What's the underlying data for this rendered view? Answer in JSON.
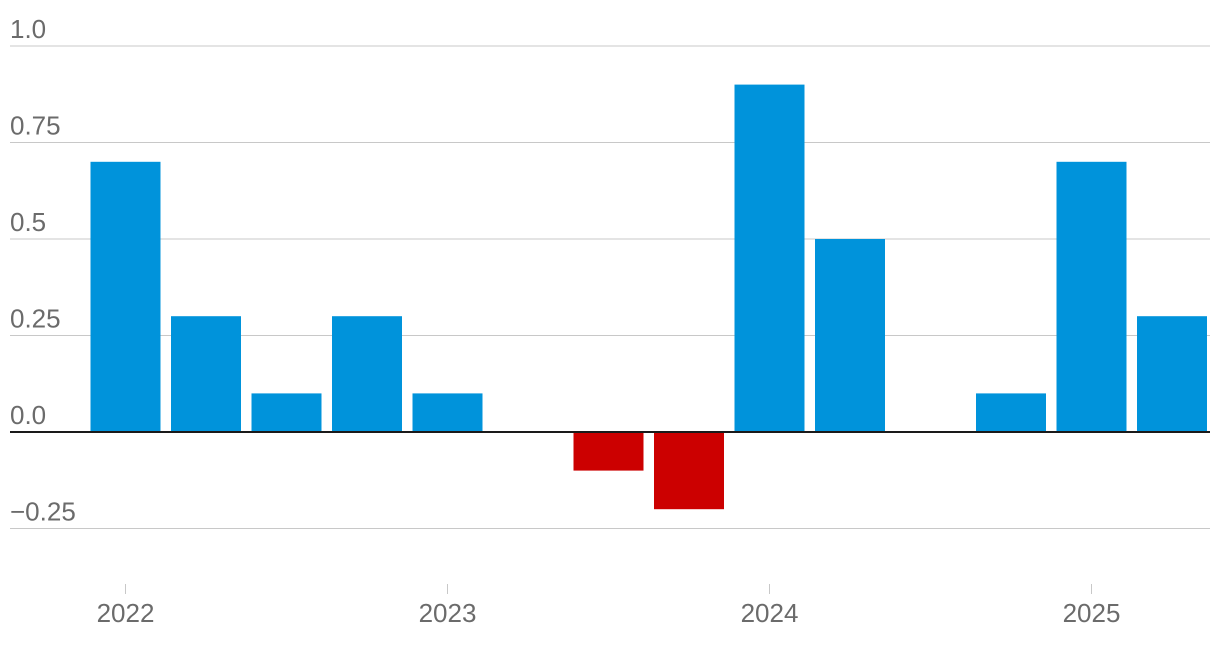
{
  "chart_data": {
    "type": "bar",
    "title": "",
    "xlabel": "",
    "ylabel": "",
    "ylim": [
      -0.35,
      1.0
    ],
    "y_ticks": [
      1.0,
      0.75,
      0.5,
      0.25,
      0.0,
      -0.25
    ],
    "y_tick_labels": [
      "1.0",
      "0.75",
      "0.5",
      "0.25",
      "0.0",
      "−0.25"
    ],
    "x_tick_labels": [
      "2022",
      "2023",
      "2024",
      "2025"
    ],
    "x_tick_slot_index": [
      0,
      4,
      8,
      12
    ],
    "values": [
      0.7,
      0.3,
      0.1,
      0.3,
      0.1,
      0.0,
      -0.1,
      -0.2,
      0.9,
      0.5,
      0.0,
      0.1,
      0.7,
      0.3
    ],
    "grid": true,
    "legend": "none",
    "colors": {
      "positive": "#0093db",
      "negative": "#cc0000",
      "gridline": "#c8c8c8",
      "zeroline": "#1a1a1a",
      "text": "#6b6b6b"
    }
  }
}
